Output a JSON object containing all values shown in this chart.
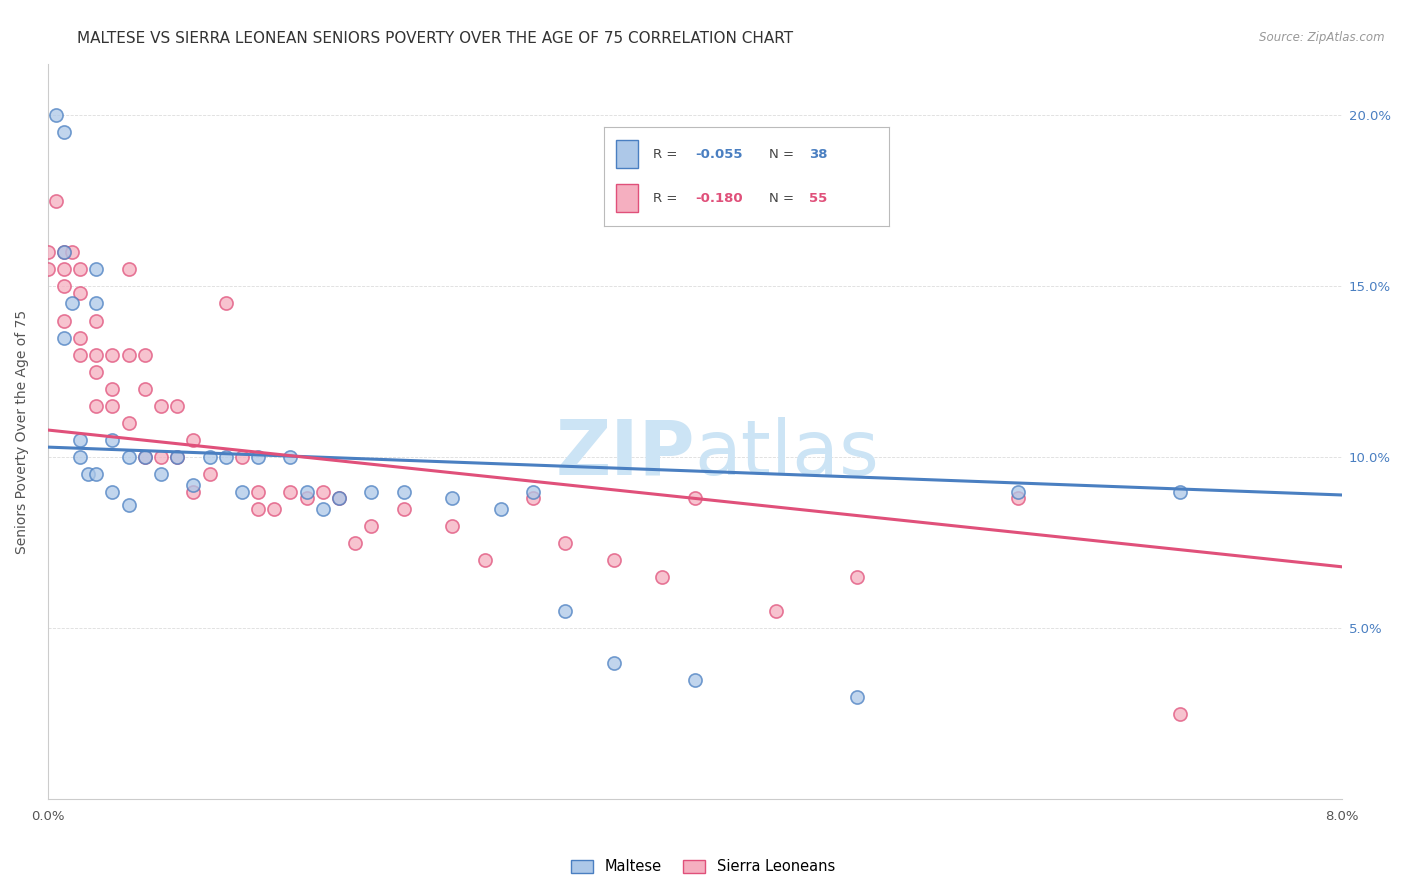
{
  "title": "MALTESE VS SIERRA LEONEAN SENIORS POVERTY OVER THE AGE OF 75 CORRELATION CHART",
  "source": "Source: ZipAtlas.com",
  "ylabel": "Seniors Poverty Over the Age of 75",
  "legend_label_blue": "Maltese",
  "legend_label_pink": "Sierra Leoneans",
  "R_blue": "-0.055",
  "N_blue": "38",
  "R_pink": "-0.180",
  "N_pink": "55",
  "blue_color": "#adc8e8",
  "pink_color": "#f5afc0",
  "blue_line_color": "#4a7fc1",
  "pink_line_color": "#e0507a",
  "watermark_color": "#cce4f5",
  "background_color": "#ffffff",
  "grid_color": "#dddddd",
  "maltese_x": [
    0.0005,
    0.001,
    0.001,
    0.001,
    0.0015,
    0.002,
    0.002,
    0.0025,
    0.003,
    0.003,
    0.003,
    0.004,
    0.004,
    0.005,
    0.005,
    0.006,
    0.007,
    0.008,
    0.009,
    0.01,
    0.011,
    0.012,
    0.013,
    0.015,
    0.016,
    0.017,
    0.018,
    0.02,
    0.022,
    0.025,
    0.028,
    0.03,
    0.032,
    0.035,
    0.04,
    0.05,
    0.06,
    0.07
  ],
  "maltese_y": [
    0.2,
    0.195,
    0.16,
    0.135,
    0.145,
    0.105,
    0.1,
    0.095,
    0.155,
    0.145,
    0.095,
    0.105,
    0.09,
    0.1,
    0.086,
    0.1,
    0.095,
    0.1,
    0.092,
    0.1,
    0.1,
    0.09,
    0.1,
    0.1,
    0.09,
    0.085,
    0.088,
    0.09,
    0.09,
    0.088,
    0.085,
    0.09,
    0.055,
    0.04,
    0.035,
    0.03,
    0.09,
    0.09
  ],
  "sierra_x": [
    0.0,
    0.0,
    0.0005,
    0.001,
    0.001,
    0.001,
    0.001,
    0.0015,
    0.002,
    0.002,
    0.002,
    0.002,
    0.003,
    0.003,
    0.003,
    0.003,
    0.004,
    0.004,
    0.004,
    0.005,
    0.005,
    0.005,
    0.006,
    0.006,
    0.006,
    0.007,
    0.007,
    0.008,
    0.008,
    0.009,
    0.009,
    0.01,
    0.011,
    0.012,
    0.013,
    0.013,
    0.014,
    0.015,
    0.016,
    0.017,
    0.018,
    0.019,
    0.02,
    0.022,
    0.025,
    0.027,
    0.03,
    0.032,
    0.035,
    0.038,
    0.04,
    0.045,
    0.05,
    0.06,
    0.07
  ],
  "sierra_y": [
    0.16,
    0.155,
    0.175,
    0.16,
    0.155,
    0.15,
    0.14,
    0.16,
    0.155,
    0.148,
    0.135,
    0.13,
    0.14,
    0.13,
    0.125,
    0.115,
    0.13,
    0.12,
    0.115,
    0.155,
    0.13,
    0.11,
    0.13,
    0.12,
    0.1,
    0.115,
    0.1,
    0.115,
    0.1,
    0.105,
    0.09,
    0.095,
    0.145,
    0.1,
    0.09,
    0.085,
    0.085,
    0.09,
    0.088,
    0.09,
    0.088,
    0.075,
    0.08,
    0.085,
    0.08,
    0.07,
    0.088,
    0.075,
    0.07,
    0.065,
    0.088,
    0.055,
    0.065,
    0.088,
    0.025
  ],
  "xlim": [
    0.0,
    0.08
  ],
  "ylim": [
    0.0,
    0.215
  ],
  "title_fontsize": 11,
  "axis_label_fontsize": 10,
  "tick_fontsize": 9.5,
  "marker_size": 90,
  "blue_trend_x0": 0.0,
  "blue_trend_y0": 0.103,
  "blue_trend_x1": 0.08,
  "blue_trend_y1": 0.089,
  "pink_trend_x0": 0.0,
  "pink_trend_y0": 0.108,
  "pink_trend_x1": 0.08,
  "pink_trend_y1": 0.068
}
